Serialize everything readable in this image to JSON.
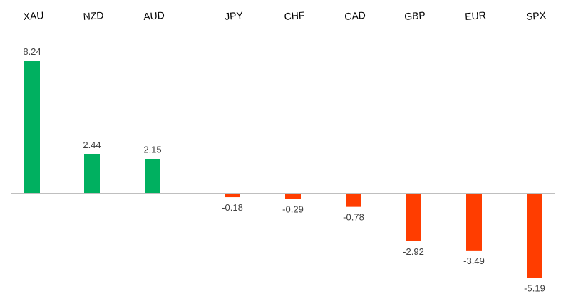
{
  "chart_data": {
    "type": "bar",
    "title": "",
    "xlabel": "",
    "ylabel": "",
    "categories": [
      "XAU",
      "NZD",
      "AUD",
      "JPY",
      "CHF",
      "CAD",
      "GBP",
      "EUR",
      "SPX"
    ],
    "values": [
      8.24,
      2.44,
      2.15,
      -0.18,
      -0.29,
      -0.78,
      -2.92,
      -3.49,
      -5.19
    ],
    "labels": [
      "8.24",
      "2.44",
      "2.15",
      "-0.18",
      "-0.29",
      "-0.78",
      "-2.92",
      "-3.49",
      "-5.19"
    ],
    "ylim": [
      -5.19,
      8.24
    ],
    "grid": false,
    "legend": "none",
    "colors": {
      "positive": "#00b060",
      "negative": "#ff3d00",
      "axis": "#bfbfbf"
    }
  }
}
